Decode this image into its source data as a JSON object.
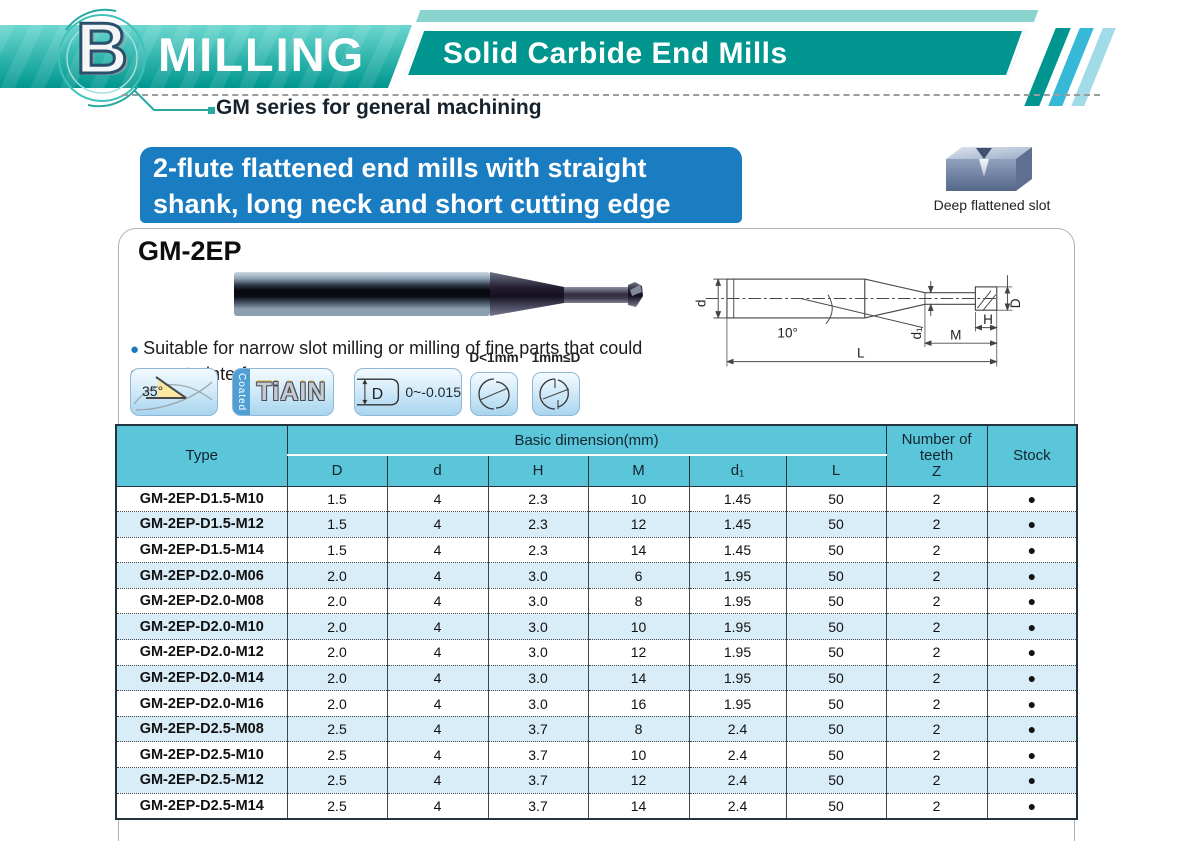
{
  "header": {
    "logo_letter": "B",
    "title": "MILLING",
    "subtitle": "Solid Carbide End Mills",
    "series_label": "GM series for general machining"
  },
  "banner": {
    "line1": "2-flute flattened end mills with straight",
    "line2": "shank, long neck and short cutting edge"
  },
  "slot_figure": {
    "caption": "Deep flattened slot"
  },
  "product": {
    "name": "GM-2EP",
    "bullet": "●",
    "description": "Suitable for narrow slot milling or milling of fine parts that could generate interference."
  },
  "feature_icons": {
    "helix": {
      "label": "35°"
    },
    "coating": {
      "strip": "Coated",
      "label": "TiAIN"
    },
    "tolerance": {
      "symbol": "D",
      "value": "0~-0.015"
    },
    "flute_small": {
      "label": "D<1mm"
    },
    "flute_large": {
      "label": "1mm≤D"
    }
  },
  "drawing": {
    "labels": {
      "d": "d",
      "angle": "10°",
      "d1": "d₁",
      "H": "H",
      "M": "M",
      "D": "D",
      "L": "L"
    }
  },
  "table": {
    "col_type": "Type",
    "group_header": "Basic dimension(mm)",
    "dim_headers": [
      "D",
      "d",
      "H",
      "M",
      "d₁",
      "L"
    ],
    "teeth_header_lines": [
      "Number of",
      "teeth",
      "Z"
    ],
    "stock_header": "Stock",
    "stock_symbol": "●",
    "rows": [
      {
        "type": "GM-2EP-D1.5-M10",
        "dims": [
          "1.5",
          "4",
          "2.3",
          "10",
          "1.45",
          "50"
        ],
        "teeth": "2",
        "stock": true
      },
      {
        "type": "GM-2EP-D1.5-M12",
        "dims": [
          "1.5",
          "4",
          "2.3",
          "12",
          "1.45",
          "50"
        ],
        "teeth": "2",
        "stock": true
      },
      {
        "type": "GM-2EP-D1.5-M14",
        "dims": [
          "1.5",
          "4",
          "2.3",
          "14",
          "1.45",
          "50"
        ],
        "teeth": "2",
        "stock": true
      },
      {
        "type": "GM-2EP-D2.0-M06",
        "dims": [
          "2.0",
          "4",
          "3.0",
          "6",
          "1.95",
          "50"
        ],
        "teeth": "2",
        "stock": true
      },
      {
        "type": "GM-2EP-D2.0-M08",
        "dims": [
          "2.0",
          "4",
          "3.0",
          "8",
          "1.95",
          "50"
        ],
        "teeth": "2",
        "stock": true
      },
      {
        "type": "GM-2EP-D2.0-M10",
        "dims": [
          "2.0",
          "4",
          "3.0",
          "10",
          "1.95",
          "50"
        ],
        "teeth": "2",
        "stock": true
      },
      {
        "type": "GM-2EP-D2.0-M12",
        "dims": [
          "2.0",
          "4",
          "3.0",
          "12",
          "1.95",
          "50"
        ],
        "teeth": "2",
        "stock": true
      },
      {
        "type": "GM-2EP-D2.0-M14",
        "dims": [
          "2.0",
          "4",
          "3.0",
          "14",
          "1.95",
          "50"
        ],
        "teeth": "2",
        "stock": true
      },
      {
        "type": "GM-2EP-D2.0-M16",
        "dims": [
          "2.0",
          "4",
          "3.0",
          "16",
          "1.95",
          "50"
        ],
        "teeth": "2",
        "stock": true
      },
      {
        "type": "GM-2EP-D2.5-M08",
        "dims": [
          "2.5",
          "4",
          "3.7",
          "8",
          "2.4",
          "50"
        ],
        "teeth": "2",
        "stock": true
      },
      {
        "type": "GM-2EP-D2.5-M10",
        "dims": [
          "2.5",
          "4",
          "3.7",
          "10",
          "2.4",
          "50"
        ],
        "teeth": "2",
        "stock": true
      },
      {
        "type": "GM-2EP-D2.5-M12",
        "dims": [
          "2.5",
          "4",
          "3.7",
          "12",
          "2.4",
          "50"
        ],
        "teeth": "2",
        "stock": true
      },
      {
        "type": "GM-2EP-D2.5-M14",
        "dims": [
          "2.5",
          "4",
          "3.7",
          "14",
          "2.4",
          "50"
        ],
        "teeth": "2",
        "stock": true
      }
    ]
  },
  "colors": {
    "brand_teal": "#00968f",
    "band_light_teal": "#6cd7d0",
    "banner_blue": "#1a7cc1",
    "table_header_cyan": "#5bc6da",
    "row_alt_blue": "#d9edf8"
  }
}
